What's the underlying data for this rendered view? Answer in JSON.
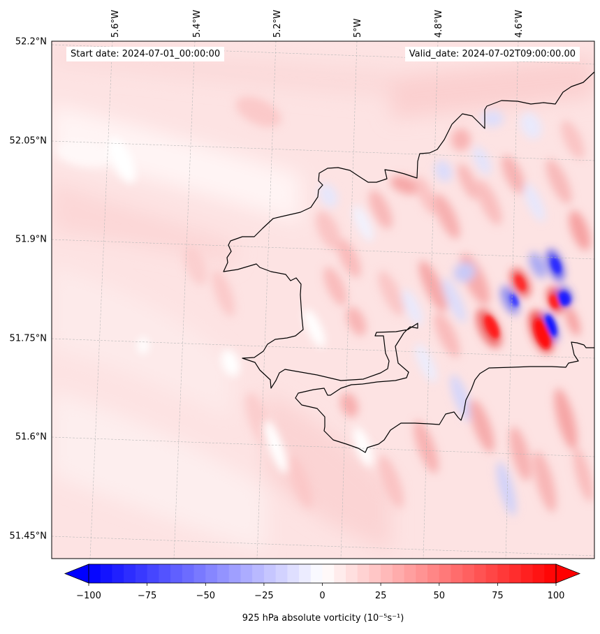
{
  "map": {
    "longitude_labels": [
      "5.6°W",
      "5.4°W",
      "5.2°W",
      "5°W",
      "4.8°W",
      "4.6°W"
    ],
    "latitude_labels": [
      "52.2°N",
      "52.05°N",
      "51.9°N",
      "51.75°N",
      "51.6°N",
      "51.45°N"
    ],
    "start_date_text": "Start date: 2024-07-01_00:00:00",
    "valid_date_text": "Valid_date: 2024-07-02T09:00:00.00",
    "field": "925 hPa absolute vorticity",
    "background_color": "#fde3e3",
    "coastline_color": "#000000"
  },
  "colorbar": {
    "title": "925 hPa absolute vorticity (10⁻⁵s⁻¹)",
    "tick_labels": [
      "−100",
      "−75",
      "−50",
      "−25",
      "0",
      "25",
      "50",
      "75",
      "100"
    ],
    "vmin": -100,
    "vmax": 100,
    "levels": 41,
    "colormap": "bwr",
    "extend": "both"
  }
}
